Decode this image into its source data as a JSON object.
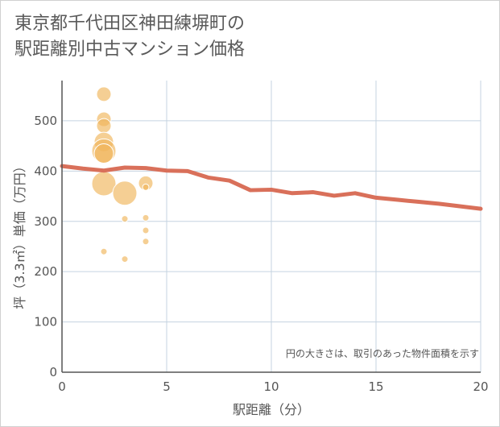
{
  "title_line1": "東京都千代田区神田練塀町の",
  "title_line2": "駅距離別中古マンション価格",
  "chart_data": {
    "type": "scatter",
    "xlabel": "駅距離（分）",
    "ylabel": "坪（3.3㎡）単価（万円）",
    "xlim": [
      0,
      20
    ],
    "ylim": [
      0,
      580
    ],
    "xticks": [
      0,
      5,
      10,
      15,
      20
    ],
    "yticks": [
      0,
      100,
      200,
      300,
      400,
      500
    ],
    "grid": true,
    "note": "円の大きさは、取引のあった物件面積を示す",
    "colors": {
      "bubble": "#f0b65a",
      "line": "#d9705a",
      "grid": "#c5d3e0",
      "axis": "#555555"
    },
    "bubbles": [
      {
        "x": 2,
        "y": 553,
        "size": 2
      },
      {
        "x": 2,
        "y": 503,
        "size": 2
      },
      {
        "x": 2,
        "y": 490,
        "size": 2
      },
      {
        "x": 2,
        "y": 458,
        "size": 3
      },
      {
        "x": 2,
        "y": 440,
        "size": 4
      },
      {
        "x": 2,
        "y": 435,
        "size": 3
      },
      {
        "x": 2,
        "y": 375,
        "size": 4
      },
      {
        "x": 2,
        "y": 240,
        "size": 1
      },
      {
        "x": 3,
        "y": 356,
        "size": 4
      },
      {
        "x": 3,
        "y": 305,
        "size": 1
      },
      {
        "x": 3,
        "y": 225,
        "size": 1
      },
      {
        "x": 4,
        "y": 376,
        "size": 2
      },
      {
        "x": 4,
        "y": 368,
        "size": 1
      },
      {
        "x": 4,
        "y": 307,
        "size": 1
      },
      {
        "x": 4,
        "y": 282,
        "size": 1
      },
      {
        "x": 4,
        "y": 260,
        "size": 1
      }
    ],
    "trend": {
      "x": [
        0,
        1,
        2,
        3,
        4,
        5,
        6,
        7,
        8,
        9,
        10,
        11,
        12,
        13,
        14,
        15,
        16,
        17,
        18,
        19,
        20
      ],
      "y": [
        410,
        405,
        401,
        407,
        406,
        401,
        400,
        387,
        381,
        362,
        363,
        356,
        358,
        351,
        356,
        347,
        343,
        339,
        335,
        330,
        325
      ]
    }
  }
}
